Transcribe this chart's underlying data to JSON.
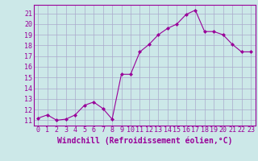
{
  "x": [
    0,
    1,
    2,
    3,
    4,
    5,
    6,
    7,
    8,
    9,
    10,
    11,
    12,
    13,
    14,
    15,
    16,
    17,
    18,
    19,
    20,
    21,
    22,
    23
  ],
  "y": [
    11.2,
    11.5,
    11.0,
    11.1,
    11.5,
    12.4,
    12.7,
    12.1,
    11.1,
    15.3,
    15.3,
    17.4,
    18.1,
    19.0,
    19.6,
    20.0,
    20.9,
    21.3,
    19.3,
    19.3,
    19.0,
    18.1,
    17.4,
    17.4
  ],
  "line_color": "#990099",
  "marker": "D",
  "marker_size": 2,
  "bg_color": "#cce8e8",
  "grid_color": "#aaaacc",
  "xlabel": "Windchill (Refroidissement éolien,°C)",
  "xlabel_color": "#990099",
  "xlabel_fontsize": 7,
  "ytick_labels": [
    "11",
    "12",
    "13",
    "14",
    "15",
    "16",
    "17",
    "18",
    "19",
    "20",
    "21"
  ],
  "ytick_values": [
    11,
    12,
    13,
    14,
    15,
    16,
    17,
    18,
    19,
    20,
    21
  ],
  "xtick_labels": [
    "0",
    "1",
    "2",
    "3",
    "4",
    "5",
    "6",
    "7",
    "8",
    "9",
    "10",
    "11",
    "12",
    "13",
    "14",
    "15",
    "16",
    "17",
    "18",
    "19",
    "20",
    "21",
    "22",
    "23"
  ],
  "xlim": [
    -0.5,
    23.5
  ],
  "ylim": [
    10.5,
    21.8
  ],
  "tick_fontsize": 6,
  "tick_color": "#990099",
  "spine_color": "#990099"
}
